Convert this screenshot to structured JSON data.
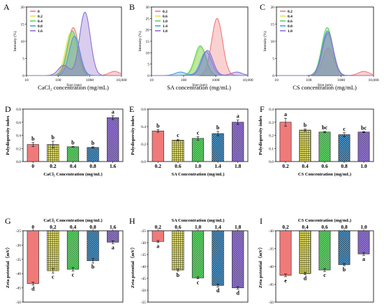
{
  "figure_colors": {
    "red": "#f07a7a",
    "yellow": "#e6e256",
    "green": "#59d262",
    "blue": "#4c9ed8",
    "purple": "#8e6fd0"
  },
  "chart_data": [
    {
      "panel": "A",
      "type": "area",
      "xscale": "log",
      "xlabel": "Size (nm)",
      "ylabel": "Intensity (%)",
      "subtitle": "CaCl₂ concentration (mg/mL)",
      "xlim": [
        10,
        10000
      ],
      "ylim": [
        0,
        20
      ],
      "xticks": [
        10,
        100,
        1000,
        10000
      ],
      "xtick_labels": [
        "10",
        "100",
        "1000",
        "10,000"
      ],
      "yticks": [
        0,
        5,
        10,
        15,
        20
      ],
      "legend_position": "top-left",
      "series": [
        {
          "name": "0",
          "color": "#f07a7a",
          "peaks": [
            {
              "center": 300,
              "height": 14
            },
            {
              "center": 6000,
              "height": 1.2
            }
          ]
        },
        {
          "name": "0.2",
          "color": "#e6e256",
          "peaks": [
            {
              "center": 250,
              "height": 12.5
            }
          ]
        },
        {
          "name": "0.4",
          "color": "#59d262",
          "peaks": [
            {
              "center": 280,
              "height": 13
            }
          ]
        },
        {
          "name": "0.8",
          "color": "#4c9ed8",
          "peaks": [
            {
              "center": 330,
              "height": 11.5
            }
          ]
        },
        {
          "name": "1.6",
          "color": "#8e6fd0",
          "peaks": [
            {
              "center": 700,
              "height": 18.5
            },
            {
              "center": 150,
              "height": 3
            }
          ]
        }
      ]
    },
    {
      "panel": "B",
      "type": "area",
      "xscale": "log",
      "xlabel": "Size (nm)",
      "ylabel": "Intensity (%)",
      "subtitle": "SA concentration (mg/mL)",
      "xlim": [
        10,
        10000
      ],
      "ylim": [
        0,
        30
      ],
      "xticks": [
        10,
        100,
        1000,
        10000
      ],
      "xtick_labels": [
        "10",
        "100",
        "1000",
        "10,000"
      ],
      "yticks": [
        0,
        5,
        10,
        15,
        20,
        25,
        30
      ],
      "legend_position": "top-left",
      "series": [
        {
          "name": "0.2",
          "color": "#f07a7a",
          "peaks": [
            {
              "center": 1100,
              "height": 25
            }
          ]
        },
        {
          "name": "0.6",
          "color": "#e6e256",
          "peaks": [
            {
              "center": 350,
              "height": 12.5
            }
          ]
        },
        {
          "name": "1.0",
          "color": "#59d262",
          "peaks": [
            {
              "center": 330,
              "height": 13
            }
          ]
        },
        {
          "name": "1.4",
          "color": "#4c9ed8",
          "peaks": [
            {
              "center": 500,
              "height": 10.5
            },
            {
              "center": 80,
              "height": 1.5
            }
          ]
        },
        {
          "name": "1.8",
          "color": "#8e6fd0",
          "peaks": [
            {
              "center": 550,
              "height": 11
            },
            {
              "center": 4500,
              "height": 1.5
            }
          ]
        }
      ]
    },
    {
      "panel": "C",
      "type": "area",
      "xscale": "log",
      "xlabel": "Size (nm)",
      "ylabel": "Intensity (%)",
      "subtitle": "CS concentration (mg/mL)",
      "xlim": [
        10,
        10000
      ],
      "ylim": [
        0,
        20
      ],
      "xticks": [
        10,
        100,
        1000,
        10000
      ],
      "xtick_labels": [
        "10",
        "100",
        "1000",
        "10,000"
      ],
      "yticks": [
        0,
        5,
        10,
        15,
        20
      ],
      "legend_position": "top-left",
      "series": [
        {
          "name": "0.2",
          "color": "#f07a7a",
          "peaks": [
            {
              "center": 400,
              "height": 8
            },
            {
              "center": 5000,
              "height": 1.2
            }
          ]
        },
        {
          "name": "0.4",
          "color": "#e6e256",
          "peaks": [
            {
              "center": 380,
              "height": 12
            }
          ]
        },
        {
          "name": "0.6",
          "color": "#59d262",
          "peaks": [
            {
              "center": 370,
              "height": 14
            }
          ]
        },
        {
          "name": "0.8",
          "color": "#4c9ed8",
          "peaks": [
            {
              "center": 380,
              "height": 13
            }
          ]
        },
        {
          "name": "1.0",
          "color": "#8e6fd0",
          "peaks": [
            {
              "center": 390,
              "height": 12.5
            }
          ]
        }
      ]
    },
    {
      "panel": "D",
      "type": "bar",
      "xlabel": "CaCl₂ Concentration (mg/mL)",
      "ylabel": "Polydispersity index",
      "categories": [
        "0",
        "0.2",
        "0.4",
        "0.8",
        "1.6"
      ],
      "values": [
        0.26,
        0.26,
        0.225,
        0.215,
        0.67
      ],
      "errors": [
        0.03,
        0.05,
        0.005,
        0.01,
        0.03
      ],
      "letters": [
        "b",
        "b",
        "b",
        "b",
        "a"
      ],
      "ylim": [
        0,
        0.8
      ],
      "yticks": [
        0,
        0.2,
        0.4,
        0.6,
        0.8
      ],
      "ytick_labels": [
        "0.0",
        "0.2",
        "0.4",
        "0.6",
        "0.8"
      ]
    },
    {
      "panel": "E",
      "type": "bar",
      "xlabel": "SA Concentration (mg/mL)",
      "ylabel": "Polydispersity index",
      "categories": [
        "0.2",
        "0.6",
        "1.0",
        "1.4",
        "1.8"
      ],
      "values": [
        0.35,
        0.245,
        0.265,
        0.32,
        0.45
      ],
      "errors": [
        0.015,
        0.01,
        0.02,
        0.025,
        0.025
      ],
      "letters": [
        "b",
        "c",
        "c",
        "b",
        "a"
      ],
      "ylim": [
        0,
        0.6
      ],
      "yticks": [
        0,
        0.2,
        0.4,
        0.6
      ],
      "ytick_labels": [
        "0.0",
        "0.2",
        "0.4",
        "0.6"
      ]
    },
    {
      "panel": "F",
      "type": "bar",
      "xlabel": "CS Concentration (mg/mL)",
      "ylabel": "Polydispersity index",
      "categories": [
        "0.2",
        "0.4",
        "0.6",
        "0.8",
        "1.0"
      ],
      "values": [
        0.3,
        0.24,
        0.225,
        0.205,
        0.225
      ],
      "errors": [
        0.03,
        0.008,
        0.005,
        0.015,
        0.003
      ],
      "letters": [
        "a",
        "b",
        "bc",
        "c",
        "bc"
      ],
      "ylim": [
        0,
        0.4
      ],
      "yticks": [
        0,
        0.1,
        0.2,
        0.3,
        0.4
      ],
      "ytick_labels": [
        "0.0",
        "0.1",
        "0.2",
        "0.3",
        "0.4"
      ]
    },
    {
      "panel": "G",
      "type": "bar",
      "title": "CaCl₂ Concentration (mg/mL)",
      "ylabel": "Zeta potential（mV）",
      "categories": [
        "0",
        "0.2",
        "0.4",
        "0.8",
        "1.6"
      ],
      "values": [
        -43.5,
        -39,
        -38.5,
        -35.5,
        -29
      ],
      "errors": [
        0.5,
        0.8,
        0.6,
        0.8,
        0.5
      ],
      "letters": [
        "d",
        "c",
        "c",
        "b",
        "a"
      ],
      "ylim": [
        -50,
        -25
      ],
      "yticks": [
        -25,
        -30,
        -35,
        -40,
        -45,
        -50
      ]
    },
    {
      "panel": "H",
      "type": "bar",
      "title": "SA Concentration (mg/mL)",
      "ylabel": "Zeta potential（mV）",
      "categories": [
        "0.2",
        "0.6",
        "1.0",
        "1.4",
        "1.8"
      ],
      "values": [
        -29.5,
        -41.5,
        -44.8,
        -48,
        -49
      ],
      "errors": [
        0.4,
        0.5,
        0.4,
        0.6,
        0.5
      ],
      "letters": [
        "a",
        "b",
        "c",
        "d",
        "d"
      ],
      "ylim": [
        -55,
        -25
      ],
      "yticks": [
        -25,
        -30,
        -35,
        -40,
        -45,
        -50,
        -55
      ]
    },
    {
      "panel": "I",
      "type": "bar",
      "title": "CS Concentration (mg/mL)",
      "ylabel": "Zeta potential（mV）",
      "categories": [
        "0.2",
        "0.4",
        "0.6",
        "0.8",
        "1.0"
      ],
      "values": [
        -42.5,
        -42,
        -41,
        -39.5,
        -36.5
      ],
      "errors": [
        0.4,
        0.3,
        0.4,
        0.3,
        0.4
      ],
      "letters": [
        "e",
        "d",
        "c",
        "b",
        "a"
      ],
      "ylim": [
        -50,
        -30
      ],
      "yticks": [
        -30,
        -35,
        -40,
        -45,
        -50
      ]
    }
  ]
}
